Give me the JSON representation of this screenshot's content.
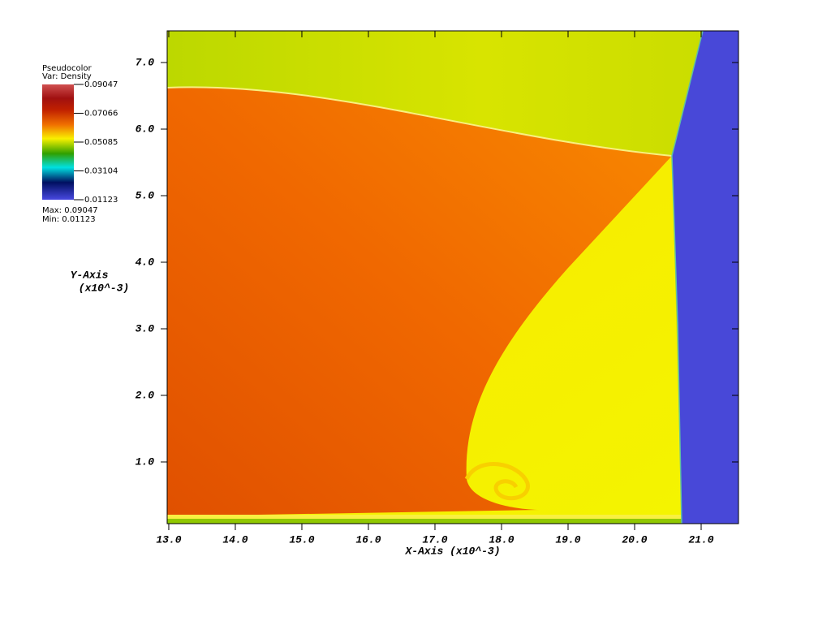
{
  "chart_data": {
    "type": "heatmap",
    "legend": {
      "title": "Pseudocolor",
      "variable": "Var: Density",
      "ticks": [
        0.09047,
        0.07066,
        0.05085,
        0.03104,
        0.01123
      ],
      "max_label": "Max: 0.09047",
      "min_label": "Min: 0.01123"
    },
    "x_label": "X-Axis (x10^-3)",
    "y_label": "Y-Axis",
    "y_label_unit": "(x10^-3)",
    "xlim": [
      12.976,
      21.561
    ],
    "xticks": [
      {
        "value": 13,
        "label": "13.0"
      },
      {
        "value": 14,
        "label": "14.0"
      },
      {
        "value": 15,
        "label": "15.0"
      },
      {
        "value": 16,
        "label": "16.0"
      },
      {
        "value": 17,
        "label": "17.0"
      },
      {
        "value": 18,
        "label": "18.0"
      },
      {
        "value": 19,
        "label": "19.0"
      },
      {
        "value": 20,
        "label": "20.0"
      },
      {
        "value": 21,
        "label": "21.0"
      }
    ],
    "ylim": [
      0.073,
      7.476
    ],
    "yticks": [
      {
        "value": 1,
        "label": "1.0"
      },
      {
        "value": 2,
        "label": "2.0"
      },
      {
        "value": 3,
        "label": "3.0"
      },
      {
        "value": 4,
        "label": "4.0"
      },
      {
        "value": 5,
        "label": "5.0"
      },
      {
        "value": 6,
        "label": "6.0"
      },
      {
        "value": 7,
        "label": "7.0"
      }
    ]
  }
}
